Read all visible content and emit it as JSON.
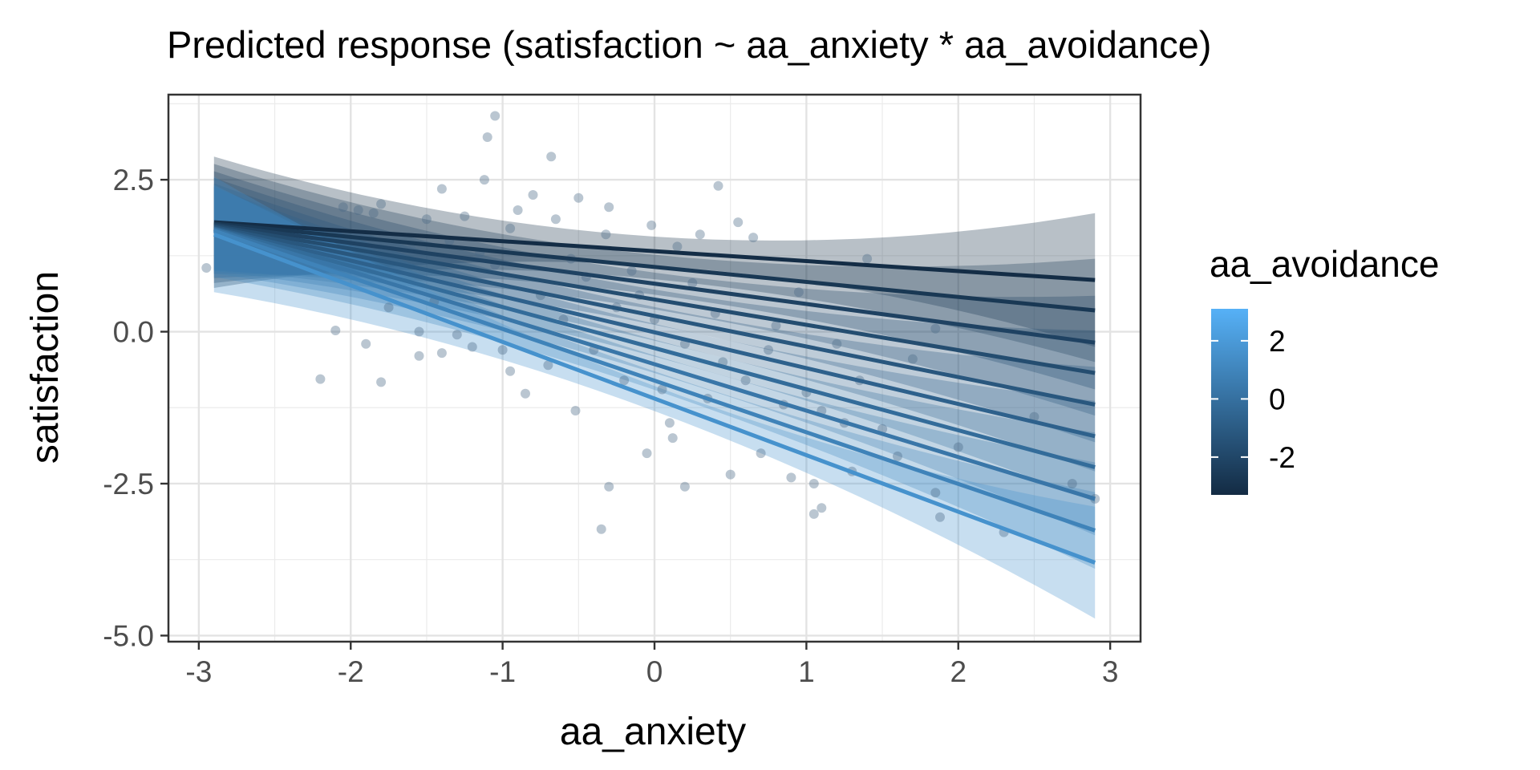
{
  "chart_data": {
    "type": "line",
    "title": "Predicted response (satisfaction ~ aa_anxiety * aa_avoidance)",
    "xlabel": "aa_anxiety",
    "ylabel": "satisfaction",
    "xlim": [
      -3.2,
      3.2
    ],
    "ylim": [
      -5.1,
      3.9
    ],
    "x_ticks": [
      -3,
      -2,
      -1,
      0,
      1,
      2,
      3
    ],
    "x_tick_labels": [
      "-3",
      "-2",
      "-1",
      "0",
      "1",
      "2",
      "3"
    ],
    "y_ticks": [
      -5,
      -2.5,
      0,
      2.5
    ],
    "y_tick_labels": [
      "-5.0",
      "-2.5",
      "0.0",
      "2.5"
    ],
    "grid": true,
    "legend": {
      "title": "aa_avoidance",
      "placement": "right",
      "type": "colorbar",
      "range": [
        -3.3,
        3.1
      ],
      "ticks": [
        2,
        0,
        -2
      ],
      "tick_labels": [
        "2",
        "0",
        "-2"
      ],
      "color_low": "#132B43",
      "color_high": "#56B1F7"
    },
    "series": [
      {
        "avoidance": -3.2,
        "x": [
          -2.9,
          2.9
        ],
        "y": [
          1.8,
          0.85
        ],
        "ci_lower": [
          0.72,
          -0.25
        ],
        "ci_upper": [
          2.88,
          1.95
        ]
      },
      {
        "avoidance": -2.7,
        "x": [
          -2.9,
          2.9
        ],
        "y": [
          1.78,
          0.35
        ],
        "ci_lower": [
          0.8,
          -0.5
        ],
        "ci_upper": [
          2.76,
          1.2
        ]
      },
      {
        "avoidance": -2.2,
        "x": [
          -2.9,
          2.9
        ],
        "y": [
          1.76,
          -0.18
        ],
        "ci_lower": [
          0.88,
          -0.95
        ],
        "ci_upper": [
          2.64,
          0.59
        ]
      },
      {
        "avoidance": -1.7,
        "x": [
          -2.9,
          2.9
        ],
        "y": [
          1.74,
          -0.68
        ],
        "ci_lower": [
          0.95,
          -1.38
        ],
        "ci_upper": [
          2.53,
          0.02
        ]
      },
      {
        "avoidance": -1.2,
        "x": [
          -2.9,
          2.9
        ],
        "y": [
          1.72,
          -1.2
        ],
        "ci_lower": [
          1.0,
          -1.82
        ],
        "ci_upper": [
          2.44,
          -0.58
        ]
      },
      {
        "avoidance": -0.7,
        "x": [
          -2.9,
          2.9
        ],
        "y": [
          1.7,
          -1.72
        ],
        "ci_lower": [
          1.02,
          -2.3
        ],
        "ci_upper": [
          2.38,
          -1.14
        ]
      },
      {
        "avoidance": -0.2,
        "x": [
          -2.9,
          2.9
        ],
        "y": [
          1.69,
          -2.23
        ],
        "ci_lower": [
          1.0,
          -2.8
        ],
        "ci_upper": [
          2.38,
          -1.66
        ]
      },
      {
        "avoidance": 0.3,
        "x": [
          -2.9,
          2.9
        ],
        "y": [
          1.68,
          -2.75
        ],
        "ci_lower": [
          0.96,
          -3.35
        ],
        "ci_upper": [
          2.4,
          -2.15
        ]
      },
      {
        "avoidance": 0.9,
        "x": [
          -2.9,
          2.9
        ],
        "y": [
          1.66,
          -3.27
        ],
        "ci_lower": [
          0.9,
          -3.9
        ],
        "ci_upper": [
          2.42,
          -2.64
        ]
      },
      {
        "avoidance": 1.6,
        "x": [
          -2.9,
          2.9
        ],
        "y": [
          1.6,
          -3.8
        ],
        "ci_lower": [
          0.65,
          -4.72
        ],
        "ci_upper": [
          2.55,
          -2.88
        ]
      }
    ],
    "points": [
      [
        -2.95,
        1.05
      ],
      [
        -2.2,
        -0.78
      ],
      [
        -2.1,
        0.02
      ],
      [
        -2.05,
        2.05
      ],
      [
        -1.95,
        2.0
      ],
      [
        -1.9,
        -0.2
      ],
      [
        -1.85,
        1.95
      ],
      [
        -1.8,
        -0.83
      ],
      [
        -1.8,
        2.1
      ],
      [
        -1.75,
        0.4
      ],
      [
        -1.6,
        1.35
      ],
      [
        -1.55,
        -0.4
      ],
      [
        -1.55,
        0.0
      ],
      [
        -1.5,
        1.85
      ],
      [
        -1.45,
        0.5
      ],
      [
        -1.4,
        2.35
      ],
      [
        -1.4,
        -0.35
      ],
      [
        -1.35,
        1.5
      ],
      [
        -1.3,
        -0.05
      ],
      [
        -1.25,
        1.9
      ],
      [
        -1.2,
        -0.25
      ],
      [
        -1.15,
        1.3
      ],
      [
        -1.12,
        2.5
      ],
      [
        -1.1,
        3.2
      ],
      [
        -1.05,
        3.55
      ],
      [
        -1.05,
        1.1
      ],
      [
        -1.0,
        -0.3
      ],
      [
        -0.95,
        1.7
      ],
      [
        -0.95,
        -0.65
      ],
      [
        -0.9,
        2.0
      ],
      [
        -0.85,
        -1.02
      ],
      [
        -0.8,
        2.25
      ],
      [
        -0.75,
        0.6
      ],
      [
        -0.7,
        -0.55
      ],
      [
        -0.68,
        2.88
      ],
      [
        -0.65,
        1.85
      ],
      [
        -0.6,
        0.2
      ],
      [
        -0.55,
        1.2
      ],
      [
        -0.52,
        -1.3
      ],
      [
        -0.5,
        2.2
      ],
      [
        -0.45,
        0.9
      ],
      [
        -0.4,
        -0.3
      ],
      [
        -0.35,
        -3.25
      ],
      [
        -0.32,
        1.6
      ],
      [
        -0.3,
        2.05
      ],
      [
        -0.3,
        -2.55
      ],
      [
        -0.25,
        0.4
      ],
      [
        -0.2,
        -0.8
      ],
      [
        -0.15,
        1.0
      ],
      [
        -0.1,
        0.6
      ],
      [
        -0.05,
        -2.0
      ],
      [
        -0.02,
        1.75
      ],
      [
        0.0,
        0.2
      ],
      [
        0.05,
        -0.95
      ],
      [
        0.1,
        -1.5
      ],
      [
        0.12,
        -1.75
      ],
      [
        0.15,
        1.4
      ],
      [
        0.2,
        -2.55
      ],
      [
        0.2,
        -0.2
      ],
      [
        0.25,
        0.8
      ],
      [
        0.3,
        1.6
      ],
      [
        0.35,
        -1.1
      ],
      [
        0.4,
        0.3
      ],
      [
        0.42,
        2.4
      ],
      [
        0.45,
        -0.5
      ],
      [
        0.5,
        -2.35
      ],
      [
        0.55,
        1.8
      ],
      [
        0.6,
        -0.8
      ],
      [
        0.65,
        1.55
      ],
      [
        0.7,
        -2.0
      ],
      [
        0.75,
        -0.3
      ],
      [
        0.8,
        0.1
      ],
      [
        0.85,
        -1.2
      ],
      [
        0.9,
        -2.4
      ],
      [
        0.95,
        0.65
      ],
      [
        1.0,
        -1.0
      ],
      [
        1.05,
        -3.0
      ],
      [
        1.05,
        -2.5
      ],
      [
        1.1,
        -1.3
      ],
      [
        1.1,
        -2.9
      ],
      [
        1.2,
        -0.2
      ],
      [
        1.25,
        -1.5
      ],
      [
        1.3,
        -2.3
      ],
      [
        1.35,
        -0.8
      ],
      [
        1.4,
        1.2
      ],
      [
        1.5,
        -1.6
      ],
      [
        1.6,
        -2.05
      ],
      [
        1.7,
        -0.45
      ],
      [
        1.85,
        -2.65
      ],
      [
        1.85,
        0.05
      ],
      [
        1.88,
        -3.05
      ],
      [
        2.0,
        -1.9
      ],
      [
        2.3,
        -3.3
      ],
      [
        2.5,
        -1.4
      ],
      [
        2.75,
        -2.5
      ],
      [
        2.9,
        -2.75
      ]
    ]
  }
}
